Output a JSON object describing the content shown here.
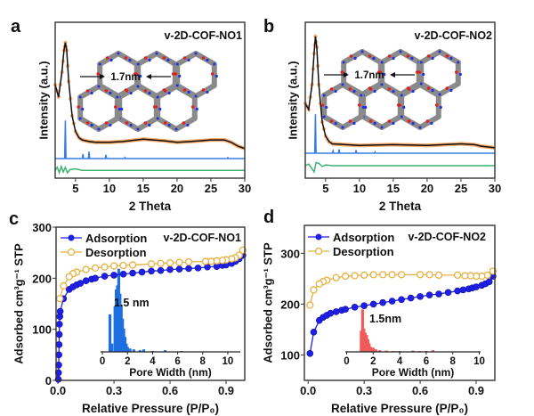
{
  "chart_data": [
    {
      "panel_label": "a",
      "type": "line",
      "title": "v-2D-COF-NO1",
      "annotation": "1.7nm",
      "xlabel": "2 Theta",
      "ylabel": "Intensity (a.u.)",
      "xlim": [
        2,
        30
      ],
      "ylim": [
        0,
        100
      ],
      "x_ticks": [
        5,
        10,
        15,
        20,
        25,
        30
      ],
      "x_tick_labels": [
        "5",
        "10",
        "15",
        "20",
        "25",
        "30"
      ],
      "colors": {
        "observed": "#f5a35c",
        "fit": "#111111",
        "simulated": "#3a7ee0",
        "difference": "#3cb371"
      },
      "observed": [
        [
          2,
          60
        ],
        [
          2.5,
          52
        ],
        [
          3,
          68
        ],
        [
          3.3,
          82
        ],
        [
          3.5,
          87
        ],
        [
          3.7,
          82
        ],
        [
          4,
          62
        ],
        [
          4.5,
          40
        ],
        [
          5,
          30
        ],
        [
          5.5,
          26
        ],
        [
          6,
          24.5
        ],
        [
          7,
          23.5
        ],
        [
          8,
          23
        ],
        [
          10,
          23
        ],
        [
          12,
          23.5
        ],
        [
          15,
          25
        ],
        [
          18,
          24
        ],
        [
          20,
          23
        ],
        [
          22,
          23.5
        ],
        [
          25,
          24.5
        ],
        [
          27,
          24.5
        ],
        [
          28,
          23
        ],
        [
          29,
          20.5
        ],
        [
          30,
          19
        ]
      ],
      "simulated": {
        "baseline": 12.6,
        "peaks": [
          [
            3.5,
            37
          ],
          [
            6.1,
            15.5
          ],
          [
            7,
            17
          ],
          [
            9.5,
            15
          ],
          [
            12.3,
            13.3
          ],
          [
            27.5,
            13.2
          ]
        ]
      },
      "difference": [
        [
          2,
          5
        ],
        [
          2.3,
          7
        ],
        [
          2.6,
          3.5
        ],
        [
          2.9,
          7.5
        ],
        [
          3.2,
          4
        ],
        [
          3.5,
          7
        ],
        [
          3.8,
          3.5
        ],
        [
          4.2,
          5.5
        ],
        [
          5,
          6
        ],
        [
          6,
          5
        ],
        [
          30,
          5
        ]
      ]
    },
    {
      "panel_label": "b",
      "type": "line",
      "title": "v-2D-COF-NO2",
      "annotation": "1.7nm",
      "xlabel": "2 Theta",
      "ylabel": "Intensity (a.u.)",
      "xlim": [
        2,
        30
      ],
      "ylim": [
        0,
        100
      ],
      "x_ticks": [
        5,
        10,
        15,
        20,
        25,
        30
      ],
      "x_tick_labels": [
        "5",
        "10",
        "15",
        "20",
        "25",
        "30"
      ],
      "colors": {
        "observed": "#f5a35c",
        "fit": "#111111",
        "simulated": "#3a7ee0",
        "difference": "#3cb371"
      },
      "observed": [
        [
          2,
          48
        ],
        [
          2.5,
          44
        ],
        [
          3,
          60
        ],
        [
          3.3,
          80
        ],
        [
          3.5,
          91
        ],
        [
          3.7,
          84
        ],
        [
          4,
          60
        ],
        [
          4.5,
          36
        ],
        [
          5,
          27
        ],
        [
          5.5,
          23.5
        ],
        [
          6,
          22
        ],
        [
          8,
          21.5
        ],
        [
          10,
          21
        ],
        [
          15,
          21.5
        ],
        [
          20,
          21
        ],
        [
          25,
          22
        ],
        [
          27,
          21.5
        ],
        [
          28,
          20.5
        ],
        [
          30,
          19.5
        ]
      ],
      "simulated": {
        "baseline": 16,
        "peaks": [
          [
            3.5,
            41
          ],
          [
            6.1,
            17.5
          ],
          [
            7,
            18.5
          ],
          [
            9.5,
            18
          ],
          [
            12.3,
            16.8
          ]
        ]
      },
      "difference": [
        [
          2,
          8
        ],
        [
          2.5,
          9
        ],
        [
          3,
          6
        ],
        [
          3.3,
          4
        ],
        [
          3.6,
          10
        ],
        [
          4,
          9.5
        ],
        [
          4.5,
          7.5
        ],
        [
          5,
          8.5
        ],
        [
          6,
          8
        ],
        [
          30,
          8
        ]
      ]
    },
    {
      "panel_label": "c",
      "type": "scatter",
      "title": "v-2D-COF-NO1",
      "xlabel": "Relative Pressure (P/P₀)",
      "ylabel": "Adsorbed cm³g⁻¹ STP",
      "xlim": [
        -0.01,
        1.0
      ],
      "ylim": [
        0,
        300
      ],
      "x_ticks": [
        0,
        0.3,
        0.6,
        0.9
      ],
      "x_tick_labels": [
        "0.0",
        "0.3",
        "0.6",
        "0.9"
      ],
      "y_ticks": [
        0,
        100,
        200,
        300
      ],
      "y_tick_labels": [
        "0",
        "100",
        "200",
        "300"
      ],
      "legend": "top-left",
      "series": [
        {
          "name": "Adsorption",
          "color": "#1f1fe6",
          "marker": "filled-circle",
          "points": [
            [
              0.002,
              2
            ],
            [
              0.003,
              15
            ],
            [
              0.004,
              30
            ],
            [
              0.005,
              50
            ],
            [
              0.006,
              70
            ],
            [
              0.007,
              90
            ],
            [
              0.008,
              110
            ],
            [
              0.01,
              125
            ],
            [
              0.012,
              135
            ],
            [
              0.03,
              160
            ],
            [
              0.06,
              178
            ],
            [
              0.08,
              183
            ],
            [
              0.1,
              187
            ],
            [
              0.12,
              190
            ],
            [
              0.15,
              195
            ],
            [
              0.18,
              198
            ],
            [
              0.2,
              200
            ],
            [
              0.25,
              204
            ],
            [
              0.3,
              206
            ],
            [
              0.35,
              208
            ],
            [
              0.4,
              210
            ],
            [
              0.45,
              212
            ],
            [
              0.5,
              214
            ],
            [
              0.55,
              215
            ],
            [
              0.6,
              217
            ],
            [
              0.65,
              218
            ],
            [
              0.7,
              219
            ],
            [
              0.75,
              220
            ],
            [
              0.8,
              222
            ],
            [
              0.85,
              223
            ],
            [
              0.88,
              225
            ],
            [
              0.9,
              226
            ],
            [
              0.93,
              229
            ],
            [
              0.95,
              233
            ],
            [
              0.97,
              238
            ],
            [
              0.99,
              245
            ]
          ]
        },
        {
          "name": "Desorption",
          "color": "#e8b040",
          "marker": "open-circle",
          "points": [
            [
              0.99,
              255
            ],
            [
              0.97,
              245
            ],
            [
              0.95,
              240
            ],
            [
              0.93,
              238
            ],
            [
              0.9,
              236
            ],
            [
              0.88,
              235
            ],
            [
              0.85,
              234
            ],
            [
              0.82,
              233
            ],
            [
              0.79,
              233
            ],
            [
              0.7,
              232
            ],
            [
              0.65,
              231
            ],
            [
              0.6,
              230
            ],
            [
              0.55,
              229
            ],
            [
              0.5,
              228
            ],
            [
              0.4,
              226
            ],
            [
              0.35,
              225
            ],
            [
              0.3,
              224
            ],
            [
              0.25,
              222
            ],
            [
              0.2,
              220
            ],
            [
              0.15,
              217
            ],
            [
              0.1,
              212
            ],
            [
              0.08,
              209
            ],
            [
              0.06,
              203
            ],
            [
              0.03,
              185
            ],
            [
              0.01,
              160
            ]
          ]
        }
      ],
      "inset": {
        "type": "bar",
        "xlabel": "Pore Width (nm)",
        "xlim": [
          -0.15,
          11
        ],
        "ylim": [
          0,
          1.05
        ],
        "x_ticks": [
          0,
          2,
          4,
          6,
          8,
          10
        ],
        "x_tick_labels": [
          "0",
          "2",
          "4",
          "6",
          "8",
          "10"
        ],
        "annotation": "1.5 nm",
        "color": "#1e6fe0",
        "x": [
          0.6,
          0.75,
          1.0,
          1.1,
          1.2,
          1.3,
          1.4,
          1.5,
          1.6,
          1.7,
          1.8,
          1.9,
          2.0,
          2.2,
          2.5,
          3.0,
          3.3,
          4.0,
          5.0,
          6.3
        ],
        "values": [
          0.45,
          0.1,
          0.55,
          0.75,
          0.8,
          1.0,
          0.7,
          0.55,
          0.4,
          0.28,
          0.18,
          0.1,
          0.06,
          0.04,
          0.03,
          0.02,
          0.03,
          0.01,
          0.02,
          0.01
        ]
      }
    },
    {
      "panel_label": "d",
      "type": "scatter",
      "title": "v-2D-COF-NO2",
      "xlabel": "Relative Pressure (P/P₀)",
      "ylabel": "Adsorbed cm³g⁻¹ STP",
      "xlim": [
        -0.02,
        1.0
      ],
      "ylim": [
        50,
        355
      ],
      "x_ticks": [
        0,
        0.3,
        0.6,
        0.9
      ],
      "x_tick_labels": [
        "0.0",
        "0.3",
        "0.6",
        "0.9"
      ],
      "y_ticks": [
        100,
        200,
        300
      ],
      "y_tick_labels": [
        "100",
        "200",
        "300"
      ],
      "legend": "top-left",
      "series": [
        {
          "name": "Adsorption",
          "color": "#1f1fe6",
          "marker": "filled-circle",
          "points": [
            [
              0.01,
              103
            ],
            [
              0.03,
              145
            ],
            [
              0.06,
              168
            ],
            [
              0.08,
              174
            ],
            [
              0.1,
              178
            ],
            [
              0.12,
              182
            ],
            [
              0.15,
              185
            ],
            [
              0.18,
              188
            ],
            [
              0.2,
              190
            ],
            [
              0.25,
              194
            ],
            [
              0.3,
              197
            ],
            [
              0.35,
              200
            ],
            [
              0.4,
              203
            ],
            [
              0.45,
              206
            ],
            [
              0.5,
              209
            ],
            [
              0.55,
              212
            ],
            [
              0.6,
              215
            ],
            [
              0.65,
              218
            ],
            [
              0.7,
              220
            ],
            [
              0.75,
              223
            ],
            [
              0.8,
              226
            ],
            [
              0.83,
              228
            ],
            [
              0.86,
              230
            ],
            [
              0.88,
              232
            ],
            [
              0.9,
              234
            ],
            [
              0.93,
              237
            ],
            [
              0.95,
              240
            ],
            [
              0.97,
              244
            ],
            [
              0.99,
              255
            ]
          ]
        },
        {
          "name": "Desorption",
          "color": "#e8b040",
          "marker": "open-circle",
          "points": [
            [
              0.99,
              265
            ],
            [
              0.96,
              257
            ],
            [
              0.93,
              255
            ],
            [
              0.9,
              255
            ],
            [
              0.87,
              256
            ],
            [
              0.84,
              256
            ],
            [
              0.8,
              257
            ],
            [
              0.7,
              257
            ],
            [
              0.65,
              258
            ],
            [
              0.6,
              258
            ],
            [
              0.5,
              258
            ],
            [
              0.45,
              258
            ],
            [
              0.4,
              258
            ],
            [
              0.35,
              258
            ],
            [
              0.3,
              257
            ],
            [
              0.25,
              256
            ],
            [
              0.2,
              255
            ],
            [
              0.15,
              252
            ],
            [
              0.1,
              247
            ],
            [
              0.08,
              244
            ],
            [
              0.06,
              240
            ],
            [
              0.03,
              228
            ],
            [
              0.01,
              198
            ]
          ]
        }
      ],
      "inset": {
        "type": "bar",
        "xlabel": "Pore Width (nm)",
        "xlim": [
          -0.1,
          10.1
        ],
        "ylim": [
          0,
          1.05
        ],
        "x_ticks": [
          0,
          2,
          4,
          6,
          8,
          10
        ],
        "x_tick_labels": [
          "0",
          "2",
          "4",
          "6",
          "8",
          "10"
        ],
        "annotation": "1.5nm",
        "color": "#f05a5a",
        "x": [
          1.1,
          1.2,
          1.3,
          1.4,
          1.5,
          1.6,
          1.7,
          1.8,
          1.9,
          2.0,
          2.2,
          2.5,
          3,
          3.5,
          4,
          5,
          5.5,
          6,
          6.5
        ],
        "values": [
          0.5,
          1.0,
          0.55,
          0.45,
          0.4,
          0.3,
          0.2,
          0.12,
          0.1,
          0.1,
          0.06,
          0.04,
          0.03,
          0.02,
          0.02,
          0.03,
          0.02,
          0.02,
          0.04
        ]
      }
    }
  ]
}
